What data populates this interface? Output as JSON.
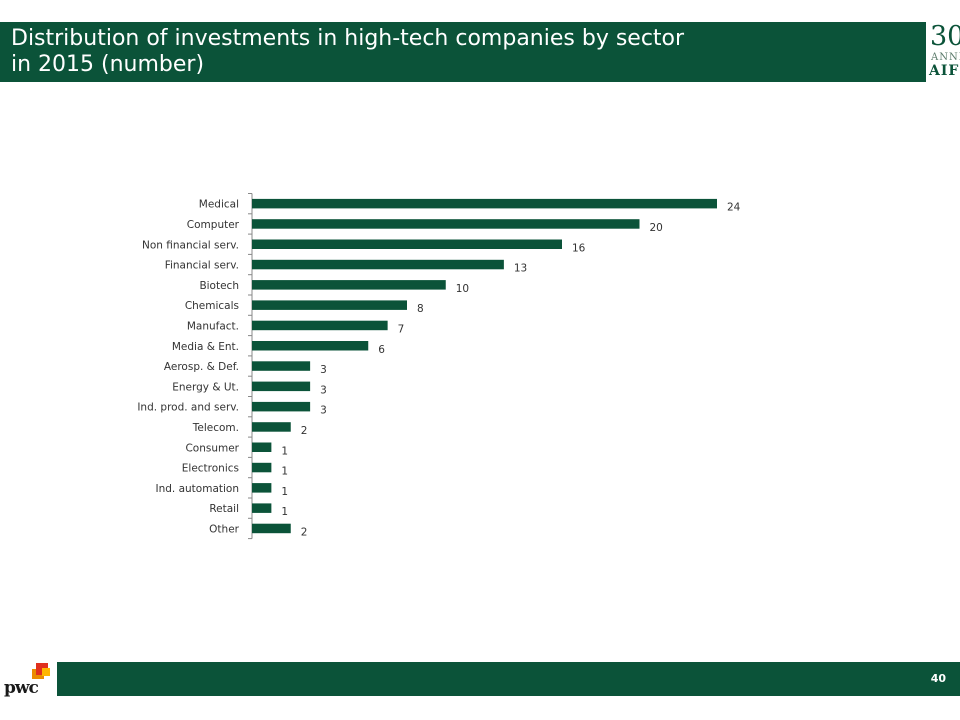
{
  "header": {
    "title_line1": "Distribution of investments in high-tech companies by sector",
    "title_line2": "in 2015 (number)",
    "logo_number": "30",
    "logo_sub": "ANNI",
    "logo_name": "AIFI"
  },
  "footer": {
    "page_number": "40",
    "brand": "pwc"
  },
  "colors": {
    "brand_green": "#0b5339",
    "bar_fill": "#0b5339"
  },
  "chart_data": {
    "type": "bar",
    "orientation": "horizontal",
    "categories": [
      "Medical",
      "Computer",
      "Non financial serv.",
      "Financial serv.",
      "Biotech",
      "Chemicals",
      "Manufact.",
      "Media & Ent.",
      "Aerosp. & Def.",
      "Energy & Ut.",
      "Ind. prod. and serv.",
      "Telecom.",
      "Consumer",
      "Electronics",
      "Ind. automation",
      "Retail",
      "Other"
    ],
    "values": [
      24,
      20,
      16,
      13,
      10,
      8,
      7,
      6,
      3,
      3,
      3,
      2,
      1,
      1,
      1,
      1,
      2
    ],
    "title": "",
    "xlabel": "",
    "ylabel": "",
    "xlim": [
      0,
      25
    ],
    "grid": false,
    "legend": "none",
    "data_labels": true
  }
}
